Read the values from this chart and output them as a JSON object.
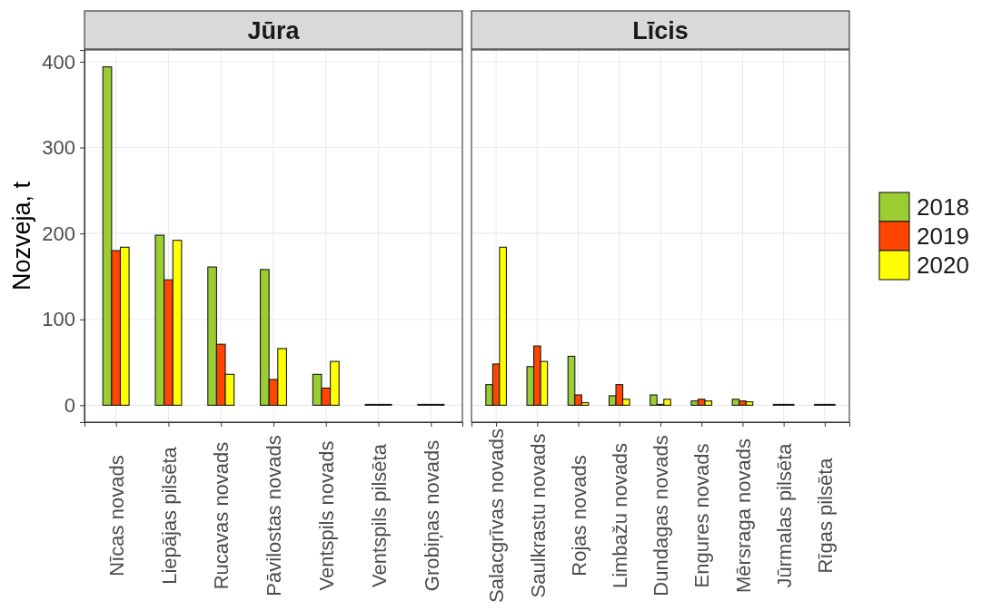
{
  "chart_data": [
    {
      "type": "bar",
      "title": "Jūra",
      "ylabel": "Nozveja, t",
      "categories": [
        "Nīcas novads",
        "Liepājas pilsēta",
        "Rucavas novads",
        "Pāvilostas novads",
        "Ventspils novads",
        "Ventspils pilsēta",
        "Grobiņas novads"
      ],
      "series": [
        {
          "name": "2018",
          "color": "#9acd32",
          "values": [
            394,
            198,
            161,
            158,
            36,
            1,
            1
          ]
        },
        {
          "name": "2019",
          "color": "#ff4500",
          "values": [
            180,
            146,
            71,
            30,
            20,
            1,
            1
          ]
        },
        {
          "name": "2020",
          "color": "#ffff00",
          "values": [
            184,
            192,
            36,
            66,
            51,
            1,
            1
          ]
        }
      ],
      "ylim": [
        -19.7,
        413.7
      ],
      "yticks": [
        0,
        100,
        200,
        300,
        400
      ],
      "grid": true,
      "legend": "right"
    },
    {
      "type": "bar",
      "title": "Līcis",
      "categories": [
        "Salacgrīvas novads",
        "Saulkrastu novads",
        "Rojas novads",
        "Limbažu novads",
        "Dundagas novads",
        "Engures novads",
        "Mērsraga novads",
        "Jūrmalas pilsēta",
        "Rīgas pilsēta"
      ],
      "series": [
        {
          "color": "#9acd32",
          "values": [
            24,
            45,
            57,
            11,
            12,
            5,
            7,
            1,
            1
          ]
        },
        {
          "color": "#ff4500",
          "values": [
            48,
            69,
            12,
            24,
            1,
            7,
            5,
            1,
            1
          ]
        },
        {
          "color": "#ffff00",
          "values": [
            184,
            51,
            3,
            7,
            7,
            5,
            4,
            1,
            1
          ]
        }
      ],
      "ylim": [
        -19.7,
        413.7
      ],
      "yticks": [
        0,
        100,
        200,
        300,
        400
      ],
      "grid": true,
      "tick_labels": "x"
    }
  ]
}
